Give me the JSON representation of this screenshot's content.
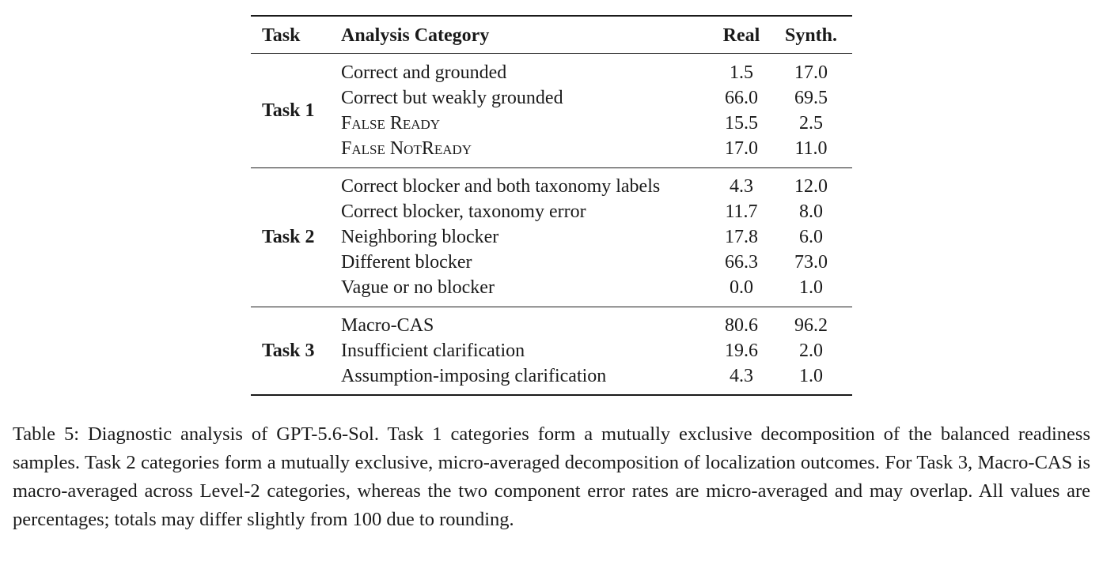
{
  "table": {
    "headers": {
      "task": "Task",
      "category": "Analysis Category",
      "real": "Real",
      "synth": "Synth."
    },
    "groups": [
      {
        "task": "Task 1",
        "rows": [
          {
            "category": "Correct and grounded",
            "real": "1.5",
            "synth": "17.0"
          },
          {
            "category": "Correct but weakly grounded",
            "real": "66.0",
            "synth": "69.5"
          },
          {
            "category": "False Ready",
            "real": "15.5",
            "synth": "2.5"
          },
          {
            "category": "False NotReady",
            "real": "17.0",
            "synth": "11.0"
          }
        ]
      },
      {
        "task": "Task 2",
        "rows": [
          {
            "category": "Correct blocker and both taxonomy labels",
            "real": "4.3",
            "synth": "12.0"
          },
          {
            "category": "Correct blocker, taxonomy error",
            "real": "11.7",
            "synth": "8.0"
          },
          {
            "category": "Neighboring blocker",
            "real": "17.8",
            "synth": "6.0"
          },
          {
            "category": "Different blocker",
            "real": "66.3",
            "synth": "73.0"
          },
          {
            "category": "Vague or no blocker",
            "real": "0.0",
            "synth": "1.0"
          }
        ]
      },
      {
        "task": "Task 3",
        "rows": [
          {
            "category": "Macro-CAS",
            "real": "80.6",
            "synth": "96.2"
          },
          {
            "category": "Insufficient clarification",
            "real": "19.6",
            "synth": "2.0"
          },
          {
            "category": "Assumption-imposing clarification",
            "real": "4.3",
            "synth": "1.0"
          }
        ]
      }
    ]
  },
  "caption": "Table 5: Diagnostic analysis of GPT-5.6-Sol. Task 1 categories form a mutually exclusive decomposition of the balanced readiness samples. Task 2 categories form a mutually exclusive, micro-averaged decomposition of localization outcomes. For Task 3, Macro-CAS is macro-averaged across Level-2 categories, whereas the two component error rates are micro-averaged and may overlap. All values are percentages; totals may differ slightly from 100 due to rounding."
}
